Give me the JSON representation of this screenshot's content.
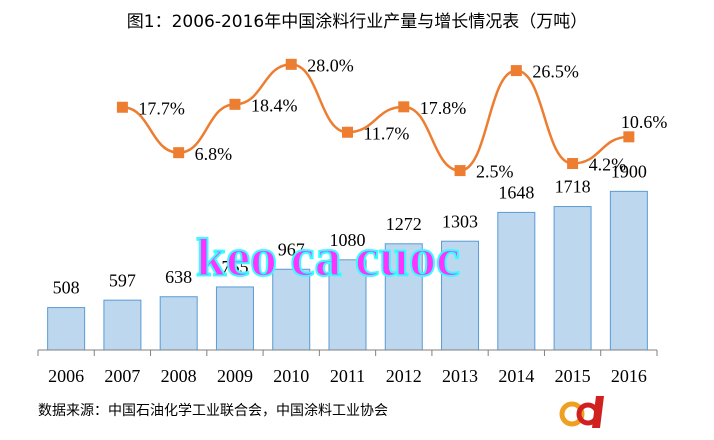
{
  "chart_data": {
    "type": "bar",
    "title": "图1：2006-2016年中国涂料行业产量与增长情况表（万吨）",
    "categories": [
      "2006",
      "2007",
      "2008",
      "2009",
      "2010",
      "2011",
      "2012",
      "2013",
      "2014",
      "2015",
      "2016"
    ],
    "series": [
      {
        "name": "产量",
        "type": "bar",
        "color": "#bdd7ee",
        "values": [
          508,
          597,
          638,
          755,
          967,
          1080,
          1272,
          1303,
          1648,
          1718,
          1900
        ]
      },
      {
        "name": "增长",
        "type": "line",
        "axis": "y2",
        "color": "#ed7d31",
        "values": [
          null,
          17.7,
          6.8,
          18.4,
          28.0,
          11.7,
          17.8,
          2.5,
          26.5,
          4.2,
          10.6
        ],
        "value_labels": [
          null,
          "17.7%",
          "6.8%",
          "18.4%",
          "28.0%",
          "11.7%",
          "17.8%",
          "2.5%",
          "26.5%",
          "4.2%",
          "10.6%"
        ]
      }
    ],
    "ylim": [
      0,
      2000
    ],
    "y2lim": [
      0,
      30
    ],
    "source": "数据来源：中国石油化学工业联合会，中国涂料工业协会",
    "watermark": "keo ca cuoc"
  }
}
